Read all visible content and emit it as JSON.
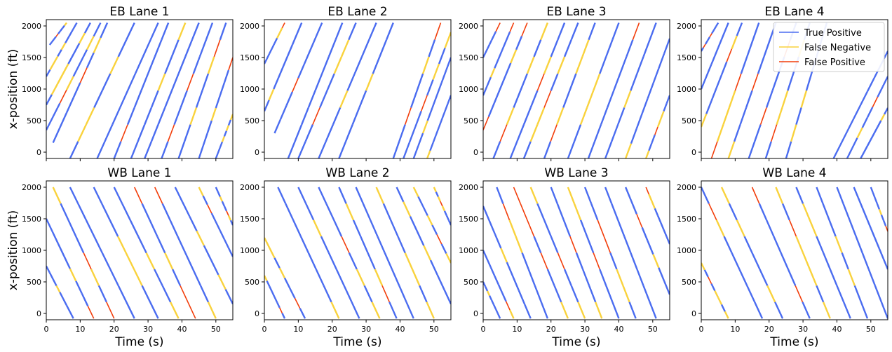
{
  "chart_data": {
    "type": "line",
    "layout": "2x4 grid of panels, shared axes",
    "legend": {
      "placement": "top-right of EB Lane 4 panel",
      "entries": [
        {
          "name": "True Positive",
          "color": "#4a6cf0"
        },
        {
          "name": "False Negative",
          "color": "#f9d23c"
        },
        {
          "name": "False Positive",
          "color": "#f23d0a"
        }
      ]
    },
    "xlabel": "Time (s)",
    "ylabel": "x-position (ft)",
    "xlim": [
      0,
      55
    ],
    "ylim": [
      -100,
      2100
    ],
    "xticks": [
      0,
      10,
      20,
      30,
      40,
      50
    ],
    "yticks": [
      0,
      500,
      1000,
      1500,
      2000
    ],
    "grid": false,
    "panels": [
      {
        "title": "EB Lane 1",
        "direction": "EB",
        "trajectories": [
          {
            "t0": 1,
            "x0": 1700,
            "t1": 6,
            "x1": 2050
          },
          {
            "t0": 0,
            "x0": 1200,
            "t1": 9,
            "x1": 2050
          },
          {
            "t0": 0,
            "x0": 750,
            "t1": 13,
            "x1": 2050
          },
          {
            "t0": 0,
            "x0": 350,
            "t1": 16,
            "x1": 2050
          },
          {
            "t0": 2,
            "x0": 150,
            "t1": 18,
            "x1": 2050
          },
          {
            "t0": 7,
            "x0": -100,
            "t1": 26,
            "x1": 2050
          },
          {
            "t0": 15,
            "x0": -100,
            "t1": 33,
            "x1": 2050
          },
          {
            "t0": 20,
            "x0": -100,
            "t1": 36,
            "x1": 2050
          },
          {
            "t0": 25,
            "x0": -100,
            "t1": 41,
            "x1": 2050
          },
          {
            "t0": 29,
            "x0": -100,
            "t1": 45,
            "x1": 2050
          },
          {
            "t0": 34,
            "x0": -100,
            "t1": 49,
            "x1": 2050
          },
          {
            "t0": 39,
            "x0": -100,
            "t1": 53,
            "x1": 2050
          },
          {
            "t0": 45,
            "x0": -100,
            "t1": 55,
            "x1": 1500
          },
          {
            "t0": 50,
            "x0": -100,
            "t1": 55,
            "x1": 600
          }
        ]
      },
      {
        "title": "EB Lane 2",
        "direction": "EB",
        "trajectories": [
          {
            "t0": 0,
            "x0": 1400,
            "t1": 6,
            "x1": 2050
          },
          {
            "t0": 0,
            "x0": 650,
            "t1": 11,
            "x1": 2050
          },
          {
            "t0": 3,
            "x0": 300,
            "t1": 17,
            "x1": 2050
          },
          {
            "t0": 7,
            "x0": -100,
            "t1": 23,
            "x1": 2050
          },
          {
            "t0": 10,
            "x0": -100,
            "t1": 27,
            "x1": 2050
          },
          {
            "t0": 16,
            "x0": -100,
            "t1": 33,
            "x1": 2050
          },
          {
            "t0": 22,
            "x0": -100,
            "t1": 38,
            "x1": 2050
          },
          {
            "t0": 38,
            "x0": -100,
            "t1": 52,
            "x1": 2050
          },
          {
            "t0": 41,
            "x0": -100,
            "t1": 55,
            "x1": 1900
          },
          {
            "t0": 44,
            "x0": -100,
            "t1": 55,
            "x1": 1500
          },
          {
            "t0": 48,
            "x0": -100,
            "t1": 55,
            "x1": 900
          }
        ]
      },
      {
        "title": "EB Lane 3",
        "direction": "EB",
        "trajectories": [
          {
            "t0": 0,
            "x0": 1500,
            "t1": 5,
            "x1": 2050
          },
          {
            "t0": 0,
            "x0": 900,
            "t1": 9,
            "x1": 2050
          },
          {
            "t0": 0,
            "x0": 350,
            "t1": 13,
            "x1": 2050
          },
          {
            "t0": 3,
            "x0": -100,
            "t1": 19,
            "x1": 2050
          },
          {
            "t0": 8,
            "x0": -100,
            "t1": 24,
            "x1": 2050
          },
          {
            "t0": 12,
            "x0": -100,
            "t1": 28,
            "x1": 2050
          },
          {
            "t0": 18,
            "x0": -100,
            "t1": 33,
            "x1": 2050
          },
          {
            "t0": 25,
            "x0": -100,
            "t1": 40,
            "x1": 2050
          },
          {
            "t0": 31,
            "x0": -100,
            "t1": 46,
            "x1": 2050
          },
          {
            "t0": 36,
            "x0": -100,
            "t1": 51,
            "x1": 2050
          },
          {
            "t0": 42,
            "x0": -100,
            "t1": 55,
            "x1": 1800
          },
          {
            "t0": 48,
            "x0": -100,
            "t1": 55,
            "x1": 900
          }
        ]
      },
      {
        "title": "EB Lane 4",
        "direction": "EB",
        "trajectories": [
          {
            "t0": 0,
            "x0": 1600,
            "t1": 5,
            "x1": 2050
          },
          {
            "t0": 0,
            "x0": 1000,
            "t1": 8,
            "x1": 2050
          },
          {
            "t0": 0,
            "x0": 400,
            "t1": 12,
            "x1": 2050
          },
          {
            "t0": 3,
            "x0": -100,
            "t1": 17,
            "x1": 2050
          },
          {
            "t0": 8,
            "x0": -100,
            "t1": 22,
            "x1": 2050
          },
          {
            "t0": 14,
            "x0": -100,
            "t1": 28,
            "x1": 2050
          },
          {
            "t0": 19,
            "x0": -100,
            "t1": 32,
            "x1": 2050
          },
          {
            "t0": 25,
            "x0": -100,
            "t1": 37,
            "x1": 2050
          },
          {
            "t0": 39,
            "x0": -100,
            "t1": 55,
            "x1": 1600
          },
          {
            "t0": 43,
            "x0": -100,
            "t1": 55,
            "x1": 1200
          },
          {
            "t0": 47,
            "x0": -100,
            "t1": 55,
            "x1": 700
          }
        ]
      },
      {
        "title": "WB Lane 1",
        "direction": "WB",
        "trajectories": [
          {
            "t0": 0,
            "x0": 750,
            "t1": 8,
            "x1": -80
          },
          {
            "t0": 0,
            "x0": 1500,
            "t1": 14,
            "x1": -80
          },
          {
            "t0": 2,
            "x0": 2000,
            "t1": 20,
            "x1": -80
          },
          {
            "t0": 7,
            "x0": 2000,
            "t1": 26,
            "x1": -80
          },
          {
            "t0": 14,
            "x0": 2000,
            "t1": 33,
            "x1": -80
          },
          {
            "t0": 20,
            "x0": 2000,
            "t1": 39,
            "x1": -80
          },
          {
            "t0": 26,
            "x0": 2000,
            "t1": 44,
            "x1": -80
          },
          {
            "t0": 32,
            "x0": 2000,
            "t1": 50,
            "x1": -80
          },
          {
            "t0": 38,
            "x0": 2000,
            "t1": 55,
            "x1": 150
          },
          {
            "t0": 45,
            "x0": 2000,
            "t1": 55,
            "x1": 900
          },
          {
            "t0": 50,
            "x0": 2000,
            "t1": 55,
            "x1": 1400
          }
        ]
      },
      {
        "title": "WB Lane 2",
        "direction": "WB",
        "trajectories": [
          {
            "t0": 0,
            "x0": 600,
            "t1": 6,
            "x1": -80
          },
          {
            "t0": 0,
            "x0": 1200,
            "t1": 12,
            "x1": -80
          },
          {
            "t0": 4,
            "x0": 2000,
            "t1": 22,
            "x1": -80
          },
          {
            "t0": 10,
            "x0": 2000,
            "t1": 28,
            "x1": -80
          },
          {
            "t0": 16,
            "x0": 2000,
            "t1": 34,
            "x1": -80
          },
          {
            "t0": 22,
            "x0": 2000,
            "t1": 39,
            "x1": -80
          },
          {
            "t0": 27,
            "x0": 2000,
            "t1": 44,
            "x1": -80
          },
          {
            "t0": 33,
            "x0": 2000,
            "t1": 50,
            "x1": -80
          },
          {
            "t0": 39,
            "x0": 2000,
            "t1": 55,
            "x1": 150
          },
          {
            "t0": 44,
            "x0": 2000,
            "t1": 55,
            "x1": 800
          },
          {
            "t0": 50,
            "x0": 2000,
            "t1": 55,
            "x1": 1400
          }
        ]
      },
      {
        "title": "WB Lane 3",
        "direction": "WB",
        "trajectories": [
          {
            "t0": 0,
            "x0": 500,
            "t1": 5,
            "x1": -80
          },
          {
            "t0": 0,
            "x0": 1000,
            "t1": 9,
            "x1": -80
          },
          {
            "t0": 0,
            "x0": 1700,
            "t1": 14,
            "x1": -80
          },
          {
            "t0": 4,
            "x0": 2000,
            "t1": 19,
            "x1": -80
          },
          {
            "t0": 9,
            "x0": 2000,
            "t1": 25,
            "x1": -80
          },
          {
            "t0": 14,
            "x0": 2000,
            "t1": 30,
            "x1": -80
          },
          {
            "t0": 20,
            "x0": 2000,
            "t1": 35,
            "x1": -80
          },
          {
            "t0": 25,
            "x0": 2000,
            "t1": 40,
            "x1": -80
          },
          {
            "t0": 30,
            "x0": 2000,
            "t1": 45,
            "x1": -80
          },
          {
            "t0": 36,
            "x0": 2000,
            "t1": 51,
            "x1": -80
          },
          {
            "t0": 42,
            "x0": 2000,
            "t1": 55,
            "x1": 300
          },
          {
            "t0": 48,
            "x0": 2000,
            "t1": 55,
            "x1": 1100
          }
        ]
      },
      {
        "title": "WB Lane 4",
        "direction": "WB",
        "trajectories": [
          {
            "t0": 0,
            "x0": 800,
            "t1": 8,
            "x1": -80
          },
          {
            "t0": 0,
            "x0": 2000,
            "t1": 18,
            "x1": -80
          },
          {
            "t0": 6,
            "x0": 2000,
            "t1": 24,
            "x1": -80
          },
          {
            "t0": 15,
            "x0": 2000,
            "t1": 32,
            "x1": -80
          },
          {
            "t0": 22,
            "x0": 2000,
            "t1": 38,
            "x1": -80
          },
          {
            "t0": 28,
            "x0": 2000,
            "t1": 44,
            "x1": -80
          },
          {
            "t0": 34,
            "x0": 2000,
            "t1": 49,
            "x1": -80
          },
          {
            "t0": 40,
            "x0": 2000,
            "t1": 55,
            "x1": -80
          },
          {
            "t0": 45,
            "x0": 2000,
            "t1": 55,
            "x1": 700
          },
          {
            "t0": 50,
            "x0": 2000,
            "t1": 55,
            "x1": 1300
          }
        ]
      }
    ]
  }
}
